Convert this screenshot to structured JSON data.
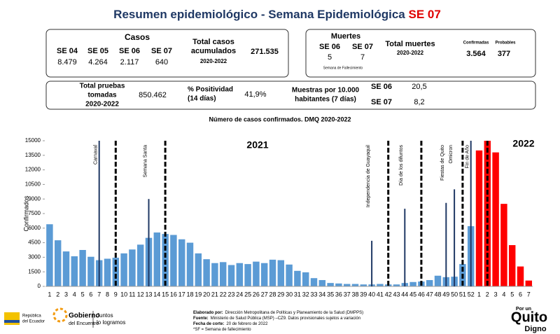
{
  "title": {
    "text": "Resumen epidemiológico - Semana Epidemiológica",
    "highlight": "SE 07"
  },
  "cases": {
    "heading": "Casos",
    "weeks": [
      {
        "label": "SE 04",
        "value": "8.479"
      },
      {
        "label": "SE 05",
        "value": "4.264"
      },
      {
        "label": "SE 06",
        "value": "2.117"
      },
      {
        "label": "SE 07",
        "value": "640"
      }
    ],
    "total_label": [
      "Total casos",
      "acumulados"
    ],
    "total_period": "2020-2022",
    "total": "271.535"
  },
  "deaths": {
    "heading": "Muertes",
    "weeks": [
      {
        "label": "SE 06",
        "value": "5"
      },
      {
        "label": "SE 07",
        "value": "7"
      }
    ],
    "note": "Semana de Fallecimiento",
    "total_label": "Total muertes",
    "total_period": "2020-2022",
    "confirmed_label": "Confirmadas",
    "confirmed": "3.564",
    "probable_label": "Probables",
    "probable": "377"
  },
  "tests": {
    "total_label": [
      "Total pruebas",
      "tomadas",
      "2020-2022"
    ],
    "total": "850.462",
    "positivity_label": [
      "% Positividad",
      "(14 días)"
    ],
    "positivity": "41,9%",
    "samples_label": [
      "Muestras por 10.000",
      "habitantes (7 días)"
    ],
    "samples": [
      {
        "label": "SE 06",
        "value": "20,5"
      },
      {
        "label": "SE 07",
        "value": "8,2"
      }
    ]
  },
  "chart_data": {
    "type": "bar",
    "title": "Número de casos confirmados. DMQ 2020-2022",
    "y_label": "Confirmados",
    "categories": [
      "1",
      "2",
      "3",
      "4",
      "5",
      "6",
      "7",
      "8",
      "9",
      "10",
      "11",
      "12",
      "13",
      "14",
      "15",
      "16",
      "17",
      "18",
      "19",
      "20",
      "21",
      "22",
      "23",
      "24",
      "25",
      "26",
      "27",
      "28",
      "29",
      "30",
      "31",
      "32",
      "33",
      "34",
      "35",
      "36",
      "37",
      "38",
      "39",
      "40",
      "41",
      "42",
      "43",
      "44",
      "45",
      "46",
      "47",
      "48",
      "49",
      "50",
      "51",
      "52",
      "1",
      "2",
      "3",
      "4",
      "5",
      "6",
      "7"
    ],
    "series": [
      {
        "name": "2021",
        "color": "#5b9bd5",
        "values": [
          6400,
          4750,
          3600,
          3100,
          3750,
          3050,
          2700,
          2850,
          2950,
          3400,
          3800,
          4300,
          5000,
          5550,
          5400,
          5300,
          4850,
          4500,
          3400,
          2800,
          2400,
          2500,
          2200,
          2400,
          2300,
          2550,
          2400,
          2750,
          2700,
          2250,
          1600,
          1450,
          850,
          650,
          350,
          300,
          250,
          250,
          200,
          200,
          250,
          200,
          200,
          350,
          450,
          500,
          650,
          1100,
          950,
          1000,
          2300,
          6200,
          null,
          null,
          null,
          null,
          null,
          null,
          null
        ]
      },
      {
        "name": "2022",
        "color": "#ff0000",
        "values": [
          null,
          null,
          null,
          null,
          null,
          null,
          null,
          null,
          null,
          null,
          null,
          null,
          null,
          null,
          null,
          null,
          null,
          null,
          null,
          null,
          null,
          null,
          null,
          null,
          null,
          null,
          null,
          null,
          null,
          null,
          null,
          null,
          null,
          null,
          null,
          null,
          null,
          null,
          null,
          null,
          null,
          null,
          null,
          null,
          null,
          null,
          null,
          null,
          null,
          null,
          null,
          null,
          14000,
          15000,
          13800,
          8500,
          4250,
          2050,
          600
        ]
      }
    ],
    "ylim": [
      0,
      15000
    ],
    "yticks": [
      0,
      1500,
      3000,
      4500,
      6000,
      7500,
      9000,
      10500,
      12000,
      13500,
      15000
    ],
    "events": [
      {
        "label": "Carnaval",
        "category_index": 6,
        "height": 15000
      },
      {
        "label": "Semana Santa",
        "category_index": 12,
        "height": 9000
      },
      {
        "label": "Independencia de Guayaquil",
        "category_index": 39,
        "height": 4700
      },
      {
        "label": "Día de los difuntos",
        "category_index": 43,
        "height": 8000
      },
      {
        "label": "Fiestas de Quito",
        "category_index": 48,
        "height": 8600
      },
      {
        "label": "Omicron",
        "category_index": 49,
        "height": 10000
      },
      {
        "label": "Fin de Año",
        "category_index": 51,
        "height": 15000
      }
    ],
    "dashed_markers": [
      8,
      14,
      41,
      45,
      50,
      53
    ]
  },
  "footer": {
    "ecuador": [
      "República",
      "del Ecuador"
    ],
    "gobierno": [
      "Gobierno",
      "del Encuentro"
    ],
    "juntos": [
      "Juntos",
      "lo logramos"
    ],
    "lines": [
      {
        "label": "Elaborado por:",
        "text": "Dirección Metropolitana de Políticas y Planeamiento de la Salud (DMPPS)"
      },
      {
        "label": "Fuente:",
        "text": "Ministerio de Salud Pública (MSP) –CZ9. Datos provisionales sujetos a variación"
      },
      {
        "label": "Fecha de corte:",
        "text": "20 de febrero de 2022"
      },
      {
        "label": "",
        "text": "*SF = Semana de fallecimiento"
      }
    ],
    "quito": [
      "Por un",
      "Quito",
      "Digno"
    ]
  }
}
